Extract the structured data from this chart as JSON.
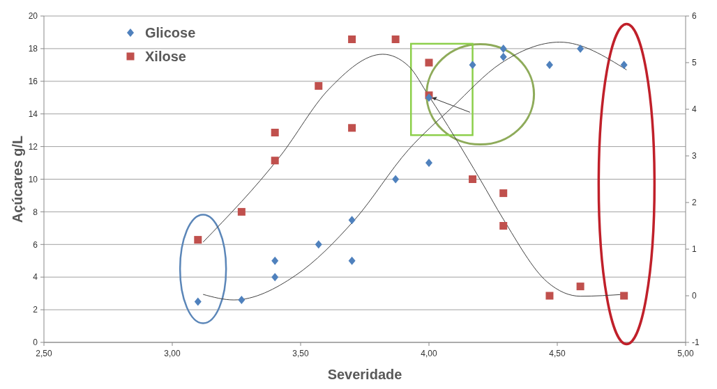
{
  "chart_data": {
    "type": "scatter",
    "xlabel": "Severidade",
    "ylabel": "Açúcares g/L",
    "xlim": [
      2.5,
      5
    ],
    "xticks": [
      {
        "value": 2.5,
        "label": "2,50"
      },
      {
        "value": 3,
        "label": "3,00"
      },
      {
        "value": 3.5,
        "label": "3,50"
      },
      {
        "value": 4,
        "label": "4,00"
      },
      {
        "value": 4.5,
        "label": "4,50"
      },
      {
        "value": 5,
        "label": "5,00"
      }
    ],
    "ylim": [
      0,
      20
    ],
    "yticks": [
      0,
      2,
      4,
      6,
      8,
      10,
      12,
      14,
      16,
      18,
      20
    ],
    "y2lim": [
      -1,
      6
    ],
    "y2ticks": [
      -1,
      0,
      1,
      2,
      3,
      4,
      5,
      6
    ],
    "grid": "y",
    "legend": "top left",
    "series": [
      {
        "name": "Glicose",
        "color": "#4f81bd",
        "marker": "diamond",
        "x": [
          3.1,
          3.27,
          3.4,
          3.4,
          3.57,
          3.7,
          3.7,
          3.87,
          4.0,
          4.0,
          4.17,
          4.29,
          4.29,
          4.47,
          4.59,
          4.76
        ],
        "values": [
          2.5,
          2.6,
          5,
          4,
          6,
          7.5,
          5,
          10,
          11,
          15,
          17,
          18,
          17.5,
          17,
          18,
          17
        ]
      },
      {
        "name": "Xilose",
        "color": "#c0504d",
        "marker": "square",
        "axis": "y2",
        "x": [
          3.1,
          3.27,
          3.4,
          3.4,
          3.57,
          3.7,
          3.7,
          3.87,
          4.0,
          4.0,
          4.17,
          4.29,
          4.29,
          4.47,
          4.59,
          4.76
        ],
        "values": [
          1.2,
          1.8,
          3.5,
          2.9,
          4.5,
          5.5,
          3.6,
          5.5,
          5.0,
          4.3,
          2.5,
          2.2,
          1.5,
          0,
          0.2,
          0
        ]
      },
      {
        "type": "line",
        "color": "#404040",
        "marker": "none",
        "x": [
          3.12,
          3.24,
          3.48,
          3.71,
          3.92,
          4.09,
          4.28,
          4.51,
          4.77
        ],
        "values": [
          2.94,
          2.6,
          4.1,
          7.5,
          11.8,
          14.4,
          17.1,
          18.4,
          16.7
        ]
      },
      {
        "type": "line",
        "color": "#404040",
        "marker": "none",
        "axis": "y2",
        "x": [
          3.12,
          3.42,
          3.61,
          3.82,
          3.92,
          4.0,
          4.2,
          4.29,
          4.46,
          4.59,
          4.76
        ],
        "values": [
          1.15,
          2.99,
          4.43,
          5.18,
          4.93,
          4.28,
          2.49,
          1.64,
          0.3,
          -0.01,
          0.03
        ]
      }
    ]
  }
}
